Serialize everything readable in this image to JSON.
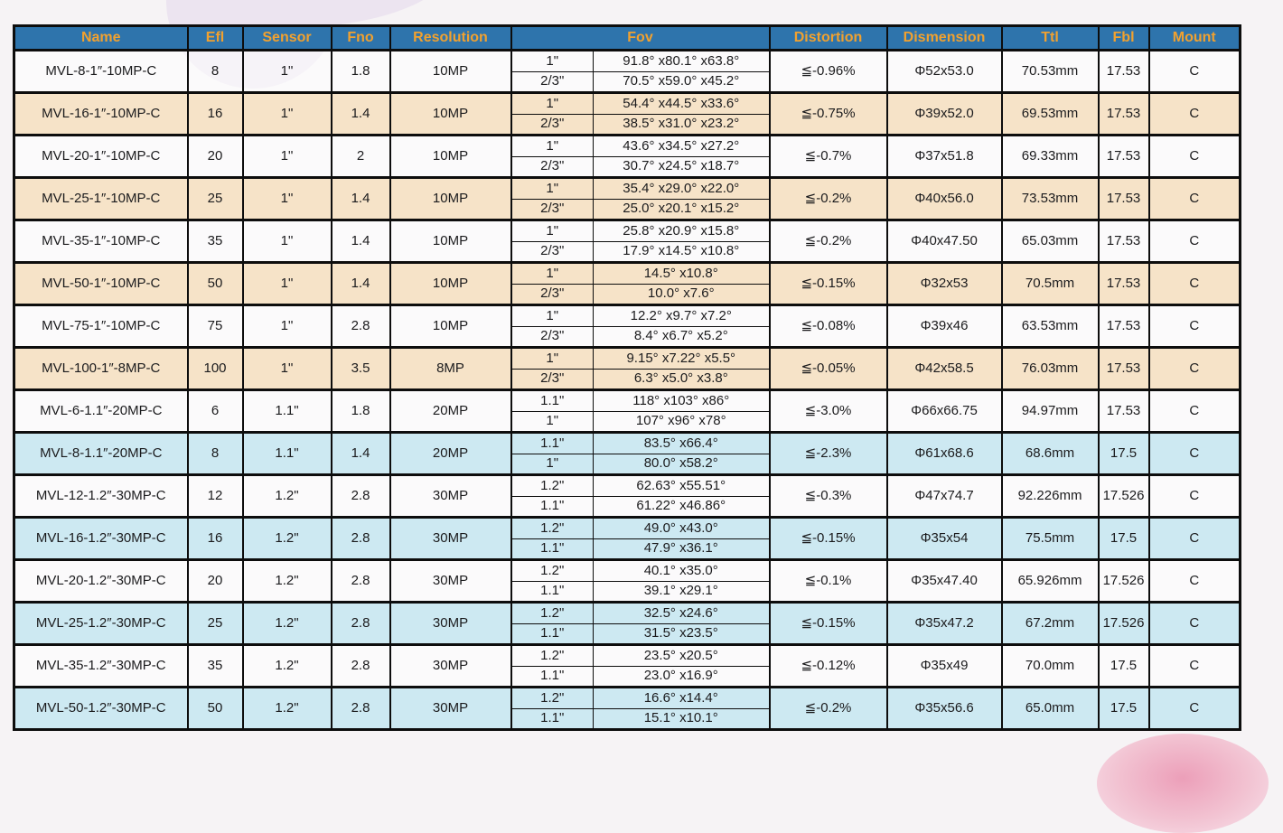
{
  "page": {
    "background_color": "#f6f3f5",
    "decoration_colors": {
      "top_blob_lavender": "#ece4f0",
      "bottom_blob_pink": "#ec9fb9"
    }
  },
  "table": {
    "header": {
      "bg_color": "#2e74ac",
      "text_color": "#f1a12f",
      "columns": [
        "Name",
        "Efl",
        "Sensor",
        "Fno",
        "Resolution",
        "Fov",
        "Distortion",
        "Dismension",
        "Ttl",
        "Fbl",
        "Mount"
      ]
    },
    "row_colors": {
      "white": "rgba(255,255,255,0.55)",
      "tan": "#f6e3c8",
      "blue": "#cde9f2"
    },
    "rows": [
      {
        "name": "MVL-8-1″-10MP-C",
        "efl": "8",
        "sensor": "1\"",
        "fno": "1.8",
        "resolution": "10MP",
        "fov": [
          {
            "size": "1\"",
            "angles": "91.8° x80.1° x63.8°"
          },
          {
            "size": "2/3\"",
            "angles": "70.5° x59.0° x45.2°"
          }
        ],
        "distortion": "≦-0.96%",
        "dismension": "Φ52x53.0",
        "ttl": "70.53mm",
        "fbl": "17.53",
        "mount": "C",
        "tint": "white"
      },
      {
        "name": "MVL-16-1″-10MP-C",
        "efl": "16",
        "sensor": "1\"",
        "fno": "1.4",
        "resolution": "10MP",
        "fov": [
          {
            "size": "1\"",
            "angles": "54.4° x44.5° x33.6°"
          },
          {
            "size": "2/3\"",
            "angles": "38.5° x31.0° x23.2°"
          }
        ],
        "distortion": "≦-0.75%",
        "dismension": "Φ39x52.0",
        "ttl": "69.53mm",
        "fbl": "17.53",
        "mount": "C",
        "tint": "tan"
      },
      {
        "name": "MVL-20-1″-10MP-C",
        "efl": "20",
        "sensor": "1\"",
        "fno": "2",
        "resolution": "10MP",
        "fov": [
          {
            "size": "1\"",
            "angles": "43.6° x34.5° x27.2°"
          },
          {
            "size": "2/3\"",
            "angles": "30.7° x24.5° x18.7°"
          }
        ],
        "distortion": "≦-0.7%",
        "dismension": "Φ37x51.8",
        "ttl": "69.33mm",
        "fbl": "17.53",
        "mount": "C",
        "tint": "white"
      },
      {
        "name": "MVL-25-1″-10MP-C",
        "efl": "25",
        "sensor": "1\"",
        "fno": "1.4",
        "resolution": "10MP",
        "fov": [
          {
            "size": "1\"",
            "angles": "35.4° x29.0° x22.0°"
          },
          {
            "size": "2/3\"",
            "angles": "25.0° x20.1° x15.2°"
          }
        ],
        "distortion": "≦-0.2%",
        "dismension": "Φ40x56.0",
        "ttl": "73.53mm",
        "fbl": "17.53",
        "mount": "C",
        "tint": "tan"
      },
      {
        "name": "MVL-35-1″-10MP-C",
        "efl": "35",
        "sensor": "1\"",
        "fno": "1.4",
        "resolution": "10MP",
        "fov": [
          {
            "size": "1\"",
            "angles": "25.8° x20.9° x15.8°"
          },
          {
            "size": "2/3\"",
            "angles": "17.9° x14.5° x10.8°"
          }
        ],
        "distortion": "≦-0.2%",
        "dismension": "Φ40x47.50",
        "ttl": "65.03mm",
        "fbl": "17.53",
        "mount": "C",
        "tint": "white"
      },
      {
        "name": "MVL-50-1″-10MP-C",
        "efl": "50",
        "sensor": "1\"",
        "fno": "1.4",
        "resolution": "10MP",
        "fov": [
          {
            "size": "1\"",
            "angles": "14.5° x10.8°"
          },
          {
            "size": "2/3\"",
            "angles": "10.0° x7.6°"
          }
        ],
        "distortion": "≦-0.15%",
        "dismension": "Φ32x53",
        "ttl": "70.5mm",
        "fbl": "17.53",
        "mount": "C",
        "tint": "tan"
      },
      {
        "name": "MVL-75-1″-10MP-C",
        "efl": "75",
        "sensor": "1\"",
        "fno": "2.8",
        "resolution": "10MP",
        "fov": [
          {
            "size": "1\"",
            "angles": "12.2° x9.7° x7.2°"
          },
          {
            "size": "2/3\"",
            "angles": "8.4° x6.7° x5.2°"
          }
        ],
        "distortion": "≦-0.08%",
        "dismension": "Φ39x46",
        "ttl": "63.53mm",
        "fbl": "17.53",
        "mount": "C",
        "tint": "white"
      },
      {
        "name": "MVL-100-1″-8MP-C",
        "efl": "100",
        "sensor": "1\"",
        "fno": "3.5",
        "resolution": "8MP",
        "fov": [
          {
            "size": "1\"",
            "angles": "9.15° x7.22° x5.5°"
          },
          {
            "size": "2/3\"",
            "angles": "6.3° x5.0° x3.8°"
          }
        ],
        "distortion": "≦-0.05%",
        "dismension": "Φ42x58.5",
        "ttl": "76.03mm",
        "fbl": "17.53",
        "mount": "C",
        "tint": "tan"
      },
      {
        "name": "MVL-6-1.1″-20MP-C",
        "efl": "6",
        "sensor": "1.1\"",
        "fno": "1.8",
        "resolution": "20MP",
        "fov": [
          {
            "size": "1.1\"",
            "angles": "118° x103° x86°"
          },
          {
            "size": "1\"",
            "angles": "107° x96° x78°"
          }
        ],
        "distortion": "≦-3.0%",
        "dismension": "Φ66x66.75",
        "ttl": "94.97mm",
        "fbl": "17.53",
        "mount": "C",
        "tint": "white"
      },
      {
        "name": "MVL-8-1.1″-20MP-C",
        "efl": "8",
        "sensor": "1.1\"",
        "fno": "1.4",
        "resolution": "20MP",
        "fov": [
          {
            "size": "1.1\"",
            "angles": "83.5° x66.4°"
          },
          {
            "size": "1\"",
            "angles": "80.0° x58.2°"
          }
        ],
        "distortion": "≦-2.3%",
        "dismension": "Φ61x68.6",
        "ttl": "68.6mm",
        "fbl": "17.5",
        "mount": "C",
        "tint": "blue"
      },
      {
        "name": "MVL-12-1.2″-30MP-C",
        "efl": "12",
        "sensor": "1.2\"",
        "fno": "2.8",
        "resolution": "30MP",
        "fov": [
          {
            "size": "1.2\"",
            "angles": "62.63° x55.51°"
          },
          {
            "size": "1.1\"",
            "angles": "61.22° x46.86°"
          }
        ],
        "distortion": "≦-0.3%",
        "dismension": "Φ47x74.7",
        "ttl": "92.226mm",
        "fbl": "17.526",
        "mount": "C",
        "tint": "white"
      },
      {
        "name": "MVL-16-1.2″-30MP-C",
        "efl": "16",
        "sensor": "1.2\"",
        "fno": "2.8",
        "resolution": "30MP",
        "fov": [
          {
            "size": "1.2\"",
            "angles": "49.0° x43.0°"
          },
          {
            "size": "1.1\"",
            "angles": "47.9° x36.1°"
          }
        ],
        "distortion": "≦-0.15%",
        "dismension": "Φ35x54",
        "ttl": "75.5mm",
        "fbl": "17.5",
        "mount": "C",
        "tint": "blue"
      },
      {
        "name": "MVL-20-1.2″-30MP-C",
        "efl": "20",
        "sensor": "1.2\"",
        "fno": "2.8",
        "resolution": "30MP",
        "fov": [
          {
            "size": "1.2\"",
            "angles": "40.1° x35.0°"
          },
          {
            "size": "1.1\"",
            "angles": "39.1° x29.1°"
          }
        ],
        "distortion": "≦-0.1%",
        "dismension": "Φ35x47.40",
        "ttl": "65.926mm",
        "fbl": "17.526",
        "mount": "C",
        "tint": "white"
      },
      {
        "name": "MVL-25-1.2″-30MP-C",
        "efl": "25",
        "sensor": "1.2\"",
        "fno": "2.8",
        "resolution": "30MP",
        "fov": [
          {
            "size": "1.2\"",
            "angles": "32.5° x24.6°"
          },
          {
            "size": "1.1\"",
            "angles": "31.5° x23.5°"
          }
        ],
        "distortion": "≦-0.15%",
        "dismension": "Φ35x47.2",
        "ttl": "67.2mm",
        "fbl": "17.526",
        "mount": "C",
        "tint": "blue"
      },
      {
        "name": "MVL-35-1.2″-30MP-C",
        "efl": "35",
        "sensor": "1.2\"",
        "fno": "2.8",
        "resolution": "30MP",
        "fov": [
          {
            "size": "1.2\"",
            "angles": "23.5° x20.5°"
          },
          {
            "size": "1.1\"",
            "angles": "23.0° x16.9°"
          }
        ],
        "distortion": "≦-0.12%",
        "dismension": "Φ35x49",
        "ttl": "70.0mm",
        "fbl": "17.5",
        "mount": "C",
        "tint": "white"
      },
      {
        "name": "MVL-50-1.2″-30MP-C",
        "efl": "50",
        "sensor": "1.2\"",
        "fno": "2.8",
        "resolution": "30MP",
        "fov": [
          {
            "size": "1.2\"",
            "angles": "16.6° x14.4°"
          },
          {
            "size": "1.1\"",
            "angles": "15.1° x10.1°"
          }
        ],
        "distortion": "≦-0.2%",
        "dismension": "Φ35x56.6",
        "ttl": "65.0mm",
        "fbl": "17.5",
        "mount": "C",
        "tint": "blue"
      }
    ]
  }
}
